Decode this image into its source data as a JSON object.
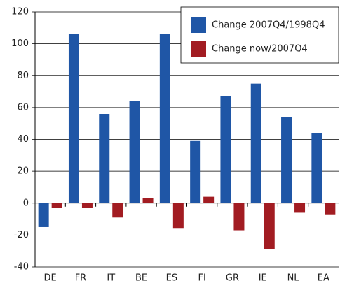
{
  "chart_data": {
    "type": "bar",
    "categories": [
      "DE",
      "FR",
      "IT",
      "BE",
      "ES",
      "FI",
      "GR",
      "IE",
      "NL",
      "EA"
    ],
    "series": [
      {
        "name": "Change 2007Q4/1998Q4",
        "color": "#1f56a6",
        "values": [
          -15,
          106,
          56,
          64,
          106,
          39,
          67,
          75,
          54,
          44
        ]
      },
      {
        "name": "Change now/2007Q4",
        "color": "#a21c22",
        "values": [
          -3,
          -3,
          -9,
          3,
          -16,
          4,
          -17,
          -29,
          -6,
          -7
        ]
      }
    ],
    "ylim": [
      -40,
      120
    ],
    "yticks": [
      -40,
      -20,
      0,
      20,
      40,
      60,
      80,
      100,
      120
    ],
    "grid": true,
    "legend": "upper right"
  }
}
